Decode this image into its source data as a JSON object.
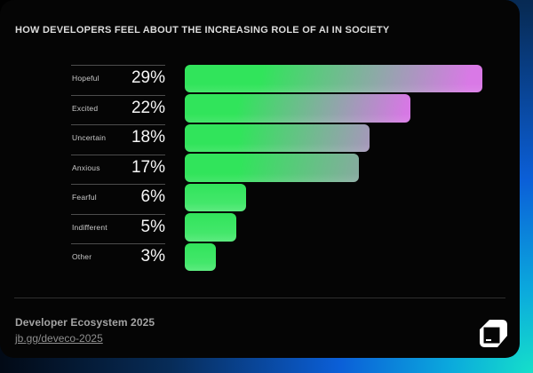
{
  "title": "HOW DEVELOPERS FEEL ABOUT THE INCREASING ROLE OF AI IN SOCIETY",
  "chart_data": {
    "type": "bar",
    "orientation": "horizontal",
    "title": "HOW DEVELOPERS FEEL ABOUT THE INCREASING ROLE OF AI IN SOCIETY",
    "categories": [
      "Hopeful",
      "Excited",
      "Uncertain",
      "Anxious",
      "Fearful",
      "Indifferent",
      "Other"
    ],
    "values": [
      29,
      22,
      18,
      17,
      6,
      5,
      3
    ],
    "value_labels": [
      "29%",
      "22%",
      "18%",
      "17%",
      "6%",
      "5%",
      "3%"
    ],
    "xlim": [
      0,
      29
    ],
    "grid": false,
    "legend_position": "left",
    "bar_colors": {
      "green": "#31e45b",
      "green_light": "#4fe975",
      "pink_strong": "#d979e6",
      "pink_medium": "#c583d4",
      "pink_muted": "#b48cc4"
    },
    "bars": [
      {
        "label": "Hopeful",
        "value": 29,
        "display": "29%",
        "fill": {
          "pink": "#d979e6",
          "green_end": 26,
          "pink_pos": 95
        }
      },
      {
        "label": "Excited",
        "value": 22,
        "display": "22%",
        "fill": {
          "pink": "#d678e4",
          "green_end": 24,
          "pink_pos": 97
        }
      },
      {
        "label": "Uncertain",
        "value": 18,
        "display": "18%",
        "fill": {
          "pink": "#c583d4",
          "green_end": 30,
          "pink_pos": 118
        }
      },
      {
        "label": "Anxious",
        "value": 17,
        "display": "17%",
        "fill": {
          "pink": "#b48cc4",
          "green_end": 32,
          "pink_pos": 135
        }
      },
      {
        "label": "Fearful",
        "value": 6,
        "display": "6%",
        "fill": {
          "pink": null
        }
      },
      {
        "label": "Indifferent",
        "value": 5,
        "display": "5%",
        "fill": {
          "pink": null
        }
      },
      {
        "label": "Other",
        "value": 3,
        "display": "3%",
        "fill": {
          "pink": null
        }
      }
    ]
  },
  "footer": {
    "source": "Developer Ecosystem 2025",
    "link": "jb.gg/deveco-2025"
  },
  "logo": {
    "name": "jetbrains-logo"
  },
  "colors": {
    "card_bg": "#050505",
    "frame_teal": "#15e0ca",
    "frame_blue": "#0b5fd8",
    "frame_navy": "#072c58",
    "title_text": "#dcdcdc",
    "label_text": "#c9c9c9",
    "value_text": "#f7f7f7",
    "separator": "#4d4d4d",
    "footer_line": "#2f2f2f",
    "footer_text": "#a3a3a3",
    "footer_link": "#8f8f8f"
  }
}
